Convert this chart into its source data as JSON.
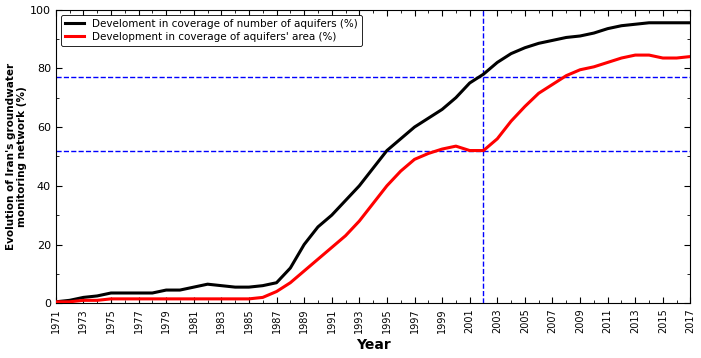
{
  "title": "",
  "xlabel": "Year",
  "ylabel": "Evolution of Iran's groundwater\nmonitoring network (%)",
  "xlim": [
    1971,
    2017
  ],
  "ylim": [
    0,
    100
  ],
  "yticks": [
    0,
    20,
    40,
    60,
    80,
    100
  ],
  "xticks": [
    1971,
    1973,
    1975,
    1977,
    1979,
    1981,
    1983,
    1985,
    1987,
    1989,
    1991,
    1993,
    1995,
    1997,
    1999,
    2001,
    2003,
    2005,
    2007,
    2009,
    2011,
    2013,
    2015,
    2017
  ],
  "dashed_hline1": 77,
  "dashed_hline2": 52,
  "dashed_vline": 2002,
  "line1_color": "black",
  "line2_color": "red",
  "dashed_color": "blue",
  "legend_label1": "Develoment in coverage of number of aquifers (%)",
  "legend_label2": "Development in coverage of aquifers' area (%)",
  "black_data": {
    "years": [
      1971,
      1972,
      1973,
      1974,
      1975,
      1976,
      1977,
      1978,
      1979,
      1980,
      1981,
      1982,
      1983,
      1984,
      1985,
      1986,
      1987,
      1988,
      1989,
      1990,
      1991,
      1992,
      1993,
      1994,
      1995,
      1996,
      1997,
      1998,
      1999,
      2000,
      2001,
      2002,
      2003,
      2004,
      2005,
      2006,
      2007,
      2008,
      2009,
      2010,
      2011,
      2012,
      2013,
      2014,
      2015,
      2016,
      2017
    ],
    "values": [
      0.5,
      1.0,
      2.0,
      2.5,
      3.5,
      3.5,
      3.5,
      3.5,
      4.5,
      4.5,
      5.5,
      6.5,
      6.0,
      5.5,
      5.5,
      6.0,
      7.0,
      12.0,
      20.0,
      26.0,
      30.0,
      35.0,
      40.0,
      46.0,
      52.0,
      56.0,
      60.0,
      63.0,
      66.0,
      70.0,
      75.0,
      78.0,
      82.0,
      85.0,
      87.0,
      88.5,
      89.5,
      90.5,
      91.0,
      92.0,
      93.5,
      94.5,
      95.0,
      95.5,
      95.5,
      95.5,
      95.5
    ]
  },
  "red_data": {
    "years": [
      1971,
      1972,
      1973,
      1974,
      1975,
      1976,
      1977,
      1978,
      1979,
      1980,
      1981,
      1982,
      1983,
      1984,
      1985,
      1986,
      1987,
      1988,
      1989,
      1990,
      1991,
      1992,
      1993,
      1994,
      1995,
      1996,
      1997,
      1998,
      1999,
      2000,
      2001,
      2002,
      2003,
      2004,
      2005,
      2006,
      2007,
      2008,
      2009,
      2010,
      2011,
      2012,
      2013,
      2014,
      2015,
      2016,
      2017
    ],
    "values": [
      0.5,
      0.5,
      1.0,
      1.0,
      1.5,
      1.5,
      1.5,
      1.5,
      1.5,
      1.5,
      1.5,
      1.5,
      1.5,
      1.5,
      1.5,
      2.0,
      4.0,
      7.0,
      11.0,
      15.0,
      19.0,
      23.0,
      28.0,
      34.0,
      40.0,
      45.0,
      49.0,
      51.0,
      52.5,
      53.5,
      52.0,
      52.0,
      56.0,
      62.0,
      67.0,
      71.5,
      74.5,
      77.5,
      79.5,
      80.5,
      82.0,
      83.5,
      84.5,
      84.5,
      83.5,
      83.5,
      84.0
    ]
  },
  "fig_width": 7.01,
  "fig_height": 3.58,
  "dpi": 100
}
